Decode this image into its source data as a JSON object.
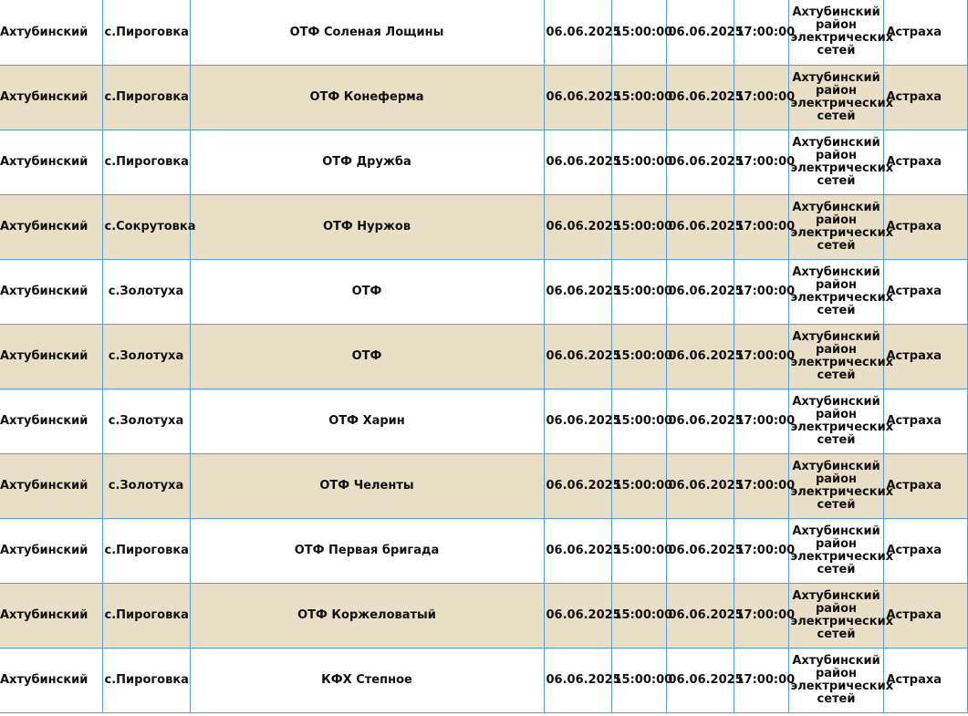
{
  "table": {
    "rows": [
      {
        "district": "Ахтубинский",
        "settlement": "с.Пироговка",
        "object": "ОТФ Соленая Лощины",
        "date_from": "06.06.2025",
        "time_from": "15:00:00",
        "date_to": "06.06.2025",
        "time_to": "17:00:00",
        "company": "Ахтубинский район электрических сетей",
        "region": "Астраха"
      },
      {
        "district": "Ахтубинский",
        "settlement": "с.Пироговка",
        "object": "ОТФ Конеферма",
        "date_from": "06.06.2025",
        "time_from": "15:00:00",
        "date_to": "06.06.2025",
        "time_to": "17:00:00",
        "company": "Ахтубинский район электрических сетей",
        "region": "Астраха"
      },
      {
        "district": "Ахтубинский",
        "settlement": "с.Пироговка",
        "object": "ОТФ Дружба",
        "date_from": "06.06.2025",
        "time_from": "15:00:00",
        "date_to": "06.06.2025",
        "time_to": "17:00:00",
        "company": "Ахтубинский район электрических сетей",
        "region": "Астраха"
      },
      {
        "district": "Ахтубинский",
        "settlement": "с.Сокрутовка",
        "object": "ОТФ Нуржов",
        "date_from": "06.06.2025",
        "time_from": "15:00:00",
        "date_to": "06.06.2025",
        "time_to": "17:00:00",
        "company": "Ахтубинский район электрических сетей",
        "region": "Астраха"
      },
      {
        "district": "Ахтубинский",
        "settlement": "с.Золотуха",
        "object": "ОТФ",
        "date_from": "06.06.2025",
        "time_from": "15:00:00",
        "date_to": "06.06.2025",
        "time_to": "17:00:00",
        "company": "Ахтубинский район электрических сетей",
        "region": "Астраха"
      },
      {
        "district": "Ахтубинский",
        "settlement": "с.Золотуха",
        "object": "ОТФ",
        "date_from": "06.06.2025",
        "time_from": "15:00:00",
        "date_to": "06.06.2025",
        "time_to": "17:00:00",
        "company": "Ахтубинский район электрических сетей",
        "region": "Астраха"
      },
      {
        "district": "Ахтубинский",
        "settlement": "с.Золотуха",
        "object": "ОТФ Харин",
        "date_from": "06.06.2025",
        "time_from": "15:00:00",
        "date_to": "06.06.2025",
        "time_to": "17:00:00",
        "company": "Ахтубинский район электрических сетей",
        "region": "Астраха"
      },
      {
        "district": "Ахтубинский",
        "settlement": "с.Золотуха",
        "object": "ОТФ Челенты",
        "date_from": "06.06.2025",
        "time_from": "15:00:00",
        "date_to": "06.06.2025",
        "time_to": "17:00:00",
        "company": "Ахтубинский район электрических сетей",
        "region": "Астраха"
      },
      {
        "district": "Ахтубинский",
        "settlement": "с.Пироговка",
        "object": "ОТФ Первая бригада",
        "date_from": "06.06.2025",
        "time_from": "15:00:00",
        "date_to": "06.06.2025",
        "time_to": "17:00:00",
        "company": "Ахтубинский район электрических сетей",
        "region": "Астраха"
      },
      {
        "district": "Ахтубинский",
        "settlement": "с.Пироговка",
        "object": "ОТФ Коржеловатый",
        "date_from": "06.06.2025",
        "time_from": "15:00:00",
        "date_to": "06.06.2025",
        "time_to": "17:00:00",
        "company": "Ахтубинский район электрических сетей",
        "region": "Астраха"
      },
      {
        "district": "Ахтубинский",
        "settlement": "с.Пироговка",
        "object": "КФХ Степное",
        "date_from": "06.06.2025",
        "time_from": "15:00:00",
        "date_to": "06.06.2025",
        "time_to": "17:00:00",
        "company": "Ахтубинский район электрических сетей",
        "region": "Астраха"
      }
    ]
  },
  "colors": {
    "grid_line": "#5b9bd5",
    "row_shade": "#e9dfc6",
    "row_plain": "#ffffff",
    "text": "#111111"
  }
}
